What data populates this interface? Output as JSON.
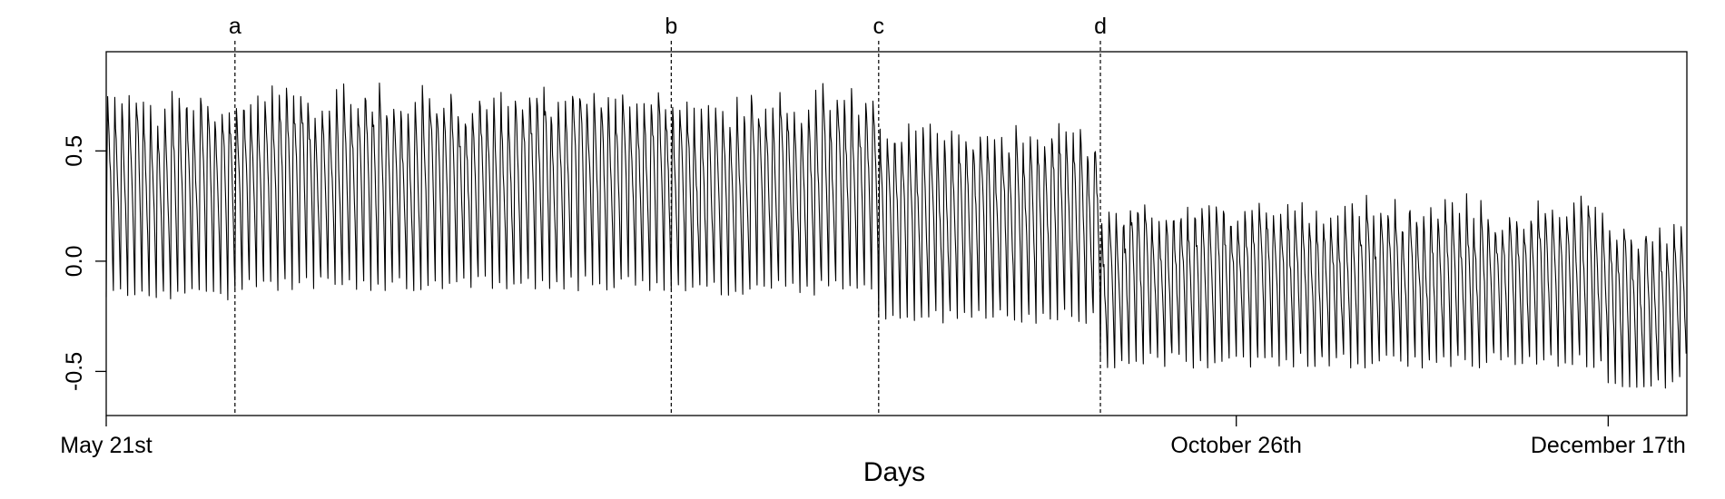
{
  "chart_data": {
    "type": "line",
    "title": "",
    "xlabel": "Days",
    "ylabel": "",
    "x_range": [
      "2013-05-21",
      "2013-12-28"
    ],
    "ylim": [
      -0.7,
      0.95
    ],
    "grid": false,
    "legend": "none",
    "x_tick_labels": [
      {
        "date": "2013-05-21",
        "label": "May 21st"
      },
      {
        "date": "2013-10-26",
        "label": "October 26th"
      },
      {
        "date": "2013-12-17",
        "label": "December 17th"
      }
    ],
    "y_ticks": [
      {
        "value": -0.5,
        "label": "-0.5"
      },
      {
        "value": 0.0,
        "label": "0.0"
      },
      {
        "value": 0.5,
        "label": "0.5"
      }
    ],
    "vertical_markers": [
      {
        "date": "2013-06-08",
        "label": "a"
      },
      {
        "date": "2013-08-08",
        "label": "b"
      },
      {
        "date": "2013-09-06",
        "label": "c"
      },
      {
        "date": "2013-10-07",
        "label": "d"
      }
    ],
    "series": [
      {
        "color": "#000000",
        "daily_cycle": true,
        "segments": [
          {
            "from": "2013-05-21",
            "to": "2013-06-08",
            "daily_peak": 0.72,
            "daily_trough": -0.15
          },
          {
            "from": "2013-06-08",
            "to": "2013-08-08",
            "daily_peak": 0.75,
            "daily_trough": -0.1
          },
          {
            "from": "2013-08-08",
            "to": "2013-09-06",
            "daily_peak": 0.75,
            "daily_trough": -0.12
          },
          {
            "from": "2013-09-06",
            "to": "2013-10-07",
            "daily_peak": 0.6,
            "daily_trough": -0.25
          },
          {
            "from": "2013-10-07",
            "to": "2013-12-17",
            "daily_peak": 0.25,
            "daily_trough": -0.45
          },
          {
            "from": "2013-12-17",
            "to": "2013-12-28",
            "daily_peak": 0.15,
            "daily_trough": -0.55
          }
        ]
      }
    ]
  }
}
